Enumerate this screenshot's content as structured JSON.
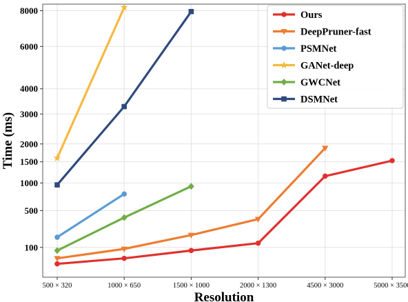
{
  "chart_data": {
    "type": "line",
    "xlabel": "Resolution",
    "ylabel": "Time (ms)",
    "y_scale": "square-root",
    "ylim": [
      0,
      8400
    ],
    "y_ticks": [
      100,
      500,
      1000,
      1500,
      2000,
      3000,
      4000,
      6000,
      8000
    ],
    "grid": true,
    "legend_position": "top-right",
    "categories": [
      "500 × 320",
      "1000 × 650",
      "1500 × 1000",
      "2000 × 1300",
      "4500 × 3000",
      "5000 × 3500",
      ""
    ],
    "series": [
      {
        "name": "Ours",
        "color": "#e0312f",
        "marker": "circle",
        "values": [
          20,
          40,
          80,
          130,
          1150,
          1530,
          null
        ]
      },
      {
        "name": "DeepPruner-fast",
        "color": "#ed7d31",
        "marker": "triangle-down",
        "values": [
          40,
          90,
          200,
          380,
          1880,
          null,
          null
        ]
      },
      {
        "name": "PSMNet",
        "color": "#5b9bd5",
        "marker": "circle",
        "values": [
          180,
          780,
          null,
          null,
          null,
          null,
          null
        ]
      },
      {
        "name": "GANet-deep",
        "color": "#f5b942",
        "marker": "star",
        "values": [
          1600,
          8200,
          null,
          null,
          null,
          null,
          null
        ]
      },
      {
        "name": "GWCNet",
        "color": "#70ad47",
        "marker": "diamond",
        "values": [
          80,
          400,
          930,
          null,
          null,
          null,
          null
        ]
      },
      {
        "name": "DSMNet",
        "color": "#2e4a7d",
        "marker": "square",
        "values": [
          960,
          3280,
          7950,
          null,
          null,
          null,
          null
        ]
      }
    ]
  }
}
